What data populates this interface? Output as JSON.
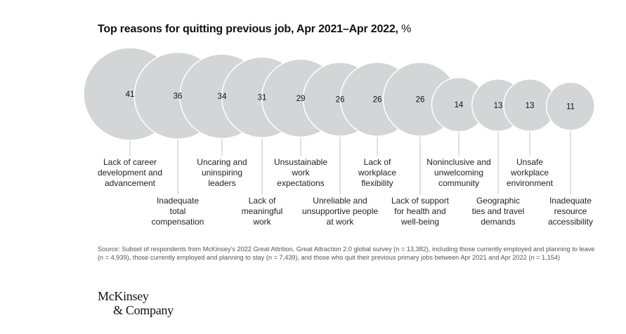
{
  "chart_data": {
    "type": "bubble",
    "title": "Top reasons for quitting previous job, Apr 2021–Apr 2022,",
    "unit": "%",
    "categories": [
      "Lack of career development and advancement",
      "Inadequate total compensation",
      "Uncaring and uninspiring leaders",
      "Lack of meaningful work",
      "Unsustainable work expectations",
      "Unreliable and unsupportive people at work",
      "Lack of workplace flexibility",
      "Lack of support for health and well-being",
      "Noninclusive and unwelcoming community",
      "Geographic ties and travel demands",
      "Unsafe workplace environment",
      "Inadequate resource accessibility"
    ],
    "values": [
      41,
      36,
      34,
      31,
      29,
      26,
      26,
      26,
      14,
      13,
      13,
      11
    ],
    "label_lines": [
      [
        "Lack of career",
        "development and",
        "advancement"
      ],
      [
        "Inadequate",
        "total",
        "compensation"
      ],
      [
        "Uncaring and",
        "uninspiring",
        "leaders"
      ],
      [
        "Lack of",
        "meaningful",
        "work"
      ],
      [
        "Unsustainable",
        "work",
        "expectations"
      ],
      [
        "Unreliable and",
        "unsupportive people",
        "at work"
      ],
      [
        "Lack of",
        "workplace",
        "flexibility"
      ],
      [
        "Lack of support",
        "for health and",
        "well-being"
      ],
      [
        "Noninclusive and",
        "unwelcoming",
        "community"
      ],
      [
        "Geographic",
        "ties and travel",
        "demands"
      ],
      [
        "Unsafe",
        "workplace",
        "environment"
      ],
      [
        "Inadequate",
        "resource",
        "accessibility"
      ]
    ],
    "colors": {
      "bubble": "#d4d5d6",
      "bubble_stroke": "#ffffff",
      "leader": "#bfc1c3",
      "text": "#111111"
    }
  },
  "source": "Source: Subset of respondents from McKinsey’s 2022 Great Attrition, Great Attraction 2.0 global survey (n = 13,382), including those currently employed and planning to leave (n = 4,939), those currently employed and planning to stay (n = 7,439), and those who quit their previous primary jobs between Apr 2021 and Apr 2022 (n = 1,154)",
  "brand": {
    "line1": "McKinsey",
    "line2": "& Company"
  }
}
